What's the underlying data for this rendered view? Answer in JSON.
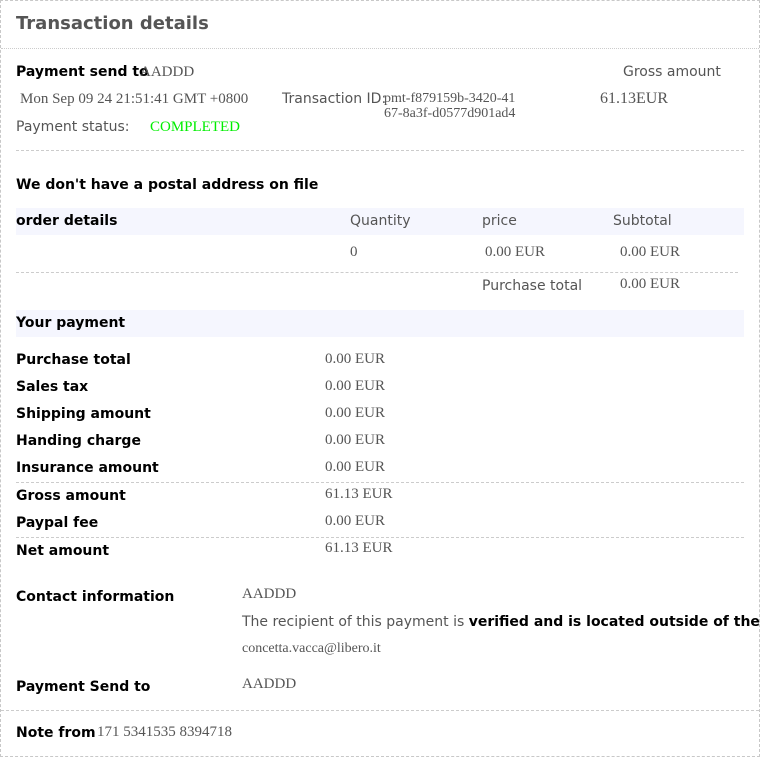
{
  "title": "Transaction details",
  "summary": {
    "send_to_label": "Payment send to",
    "send_to_value": "AADDD",
    "date": "Mon Sep 09 24 21:51:41 GMT +0800",
    "transaction_id_label": "Transaction ID:",
    "transaction_id_line1": "pmt-f879159b-3420-41",
    "transaction_id_line2": "67-8a3f-d0577d901ad4",
    "status_label": "Payment status:",
    "status_value": "COMPLETED",
    "status_color": "#00ee00",
    "gross_label": "Gross amount",
    "gross_value": "61.13EUR"
  },
  "postal_note": "We don't have a postal address on file",
  "order": {
    "headers": [
      "order details",
      "Quantity",
      "price",
      "Subtotal"
    ],
    "row": {
      "quantity": "0",
      "price": "0.00 EUR",
      "subtotal": "0.00 EUR"
    },
    "total_label": "Purchase total",
    "total_value": "0.00 EUR"
  },
  "payment": {
    "heading": "Your payment",
    "rows": [
      {
        "label": "Purchase total",
        "value": "0.00 EUR"
      },
      {
        "label": "Sales tax",
        "value": "0.00 EUR"
      },
      {
        "label": "Shipping amount",
        "value": "0.00 EUR"
      },
      {
        "label": "Handing charge",
        "value": "0.00 EUR"
      },
      {
        "label": "Insurance amount",
        "value": "0.00 EUR"
      },
      {
        "label": "Gross amount",
        "value": "61.13 EUR"
      },
      {
        "label": "Paypal fee",
        "value": "0.00 EUR"
      },
      {
        "label": "Net amount",
        "value": "61.13 EUR"
      }
    ]
  },
  "contact": {
    "label": "Contact information",
    "name": "AADDD",
    "verified_prefix": "The recipient of this payment is ",
    "verified_bold": "verified and is located outside of the US.",
    "email": "concetta.vacca@libero.it"
  },
  "send_to": {
    "label": "Payment Send to",
    "value": "AADDD"
  },
  "note": {
    "label": "Note from",
    "value": "171 5341535 8394718"
  }
}
